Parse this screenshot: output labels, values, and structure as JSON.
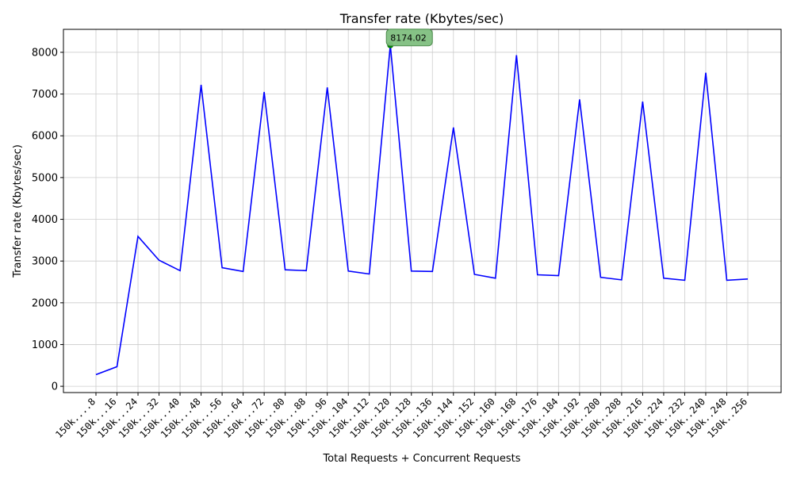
{
  "chart_data": {
    "type": "line",
    "title": "Transfer rate (Kbytes/sec)",
    "xlabel": "Total Requests + Concurrent Requests",
    "ylabel": "Transfer rate (Kbytes/sec)",
    "ylim": [
      -150,
      8550
    ],
    "yticks": [
      0,
      1000,
      2000,
      3000,
      4000,
      5000,
      6000,
      7000,
      8000
    ],
    "grid": true,
    "line_color": "#0000ff",
    "categories": [
      "150k....8",
      "150k...16",
      "150k...24",
      "150k...32",
      "150k...40",
      "150k...48",
      "150k...56",
      "150k...64",
      "150k...72",
      "150k...80",
      "150k...88",
      "150k...96",
      "150k..104",
      "150k..112",
      "150k..120",
      "150k..128",
      "150k..136",
      "150k..144",
      "150k..152",
      "150k..160",
      "150k..168",
      "150k..176",
      "150k..184",
      "150k..192",
      "150k..200",
      "150k..208",
      "150k..216",
      "150k..224",
      "150k..232",
      "150k..240",
      "150k..248",
      "150k..256"
    ],
    "series": [
      {
        "values": [
          280,
          470,
          3590,
          3020,
          2770,
          7220,
          2840,
          2750,
          7050,
          2790,
          2770,
          7160,
          2760,
          2690,
          8174.02,
          2760,
          2750,
          6200,
          2680,
          2590,
          7930,
          2670,
          2650,
          6870,
          2610,
          2550,
          6820,
          2590,
          2540,
          7510,
          2540,
          2570
        ]
      }
    ],
    "annotation": {
      "text": "8174.02",
      "category_index": 14,
      "value": 8174.02,
      "marker_color": "#008000",
      "box_color": "#7fbf7f"
    }
  }
}
